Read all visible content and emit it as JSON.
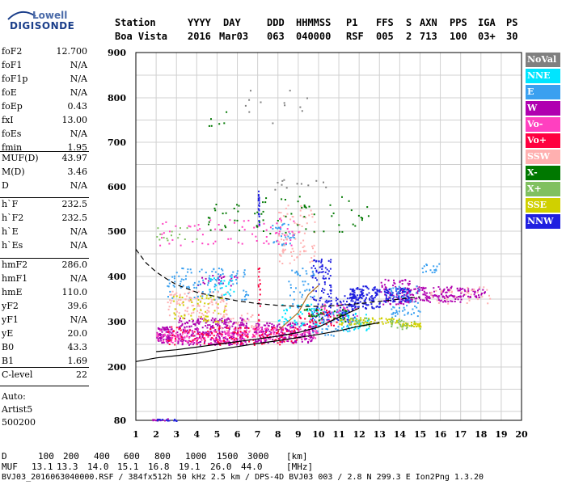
{
  "logo": {
    "line1": "Lowell",
    "line2": "DIGISONDE"
  },
  "header": {
    "labels": [
      "Station",
      "YYYY",
      "DAY",
      "DDD",
      "HHMMSS",
      "P1",
      "FFS",
      "S",
      "AXN",
      "PPS",
      "IGA",
      "PS"
    ],
    "values": [
      "Boa Vista",
      "2016",
      "Mar03",
      "063",
      "040000",
      "RSF",
      "005",
      "2",
      "713",
      "100",
      "03+",
      "30"
    ]
  },
  "params_group1": [
    {
      "key": "foF2",
      "value": "12.700"
    },
    {
      "key": "foF1",
      "value": "N/A"
    },
    {
      "key": "foF1p",
      "value": "N/A"
    },
    {
      "key": "foE",
      "value": "N/A"
    },
    {
      "key": "foEp",
      "value": "0.43"
    },
    {
      "key": "fxI",
      "value": "13.00"
    },
    {
      "key": "foEs",
      "value": "N/A"
    },
    {
      "key": "fmin",
      "value": "1.95"
    }
  ],
  "params_group2": [
    {
      "key": "MUF(D)",
      "value": "43.97"
    },
    {
      "key": "M(D)",
      "value": "3.46"
    },
    {
      "key": "D",
      "value": "N/A"
    }
  ],
  "params_group3": [
    {
      "key": "h`F",
      "value": "232.5"
    },
    {
      "key": "h`F2",
      "value": "232.5"
    },
    {
      "key": "h`E",
      "value": "N/A"
    },
    {
      "key": "h`Es",
      "value": "N/A"
    }
  ],
  "params_group4": [
    {
      "key": "hmF2",
      "value": "286.0"
    },
    {
      "key": "hmF1",
      "value": "N/A"
    },
    {
      "key": "hmE",
      "value": "110.0"
    },
    {
      "key": "yF2",
      "value": "39.6"
    },
    {
      "key": "yF1",
      "value": "N/A"
    },
    {
      "key": "yE",
      "value": "20.0"
    },
    {
      "key": "B0",
      "value": "43.3"
    },
    {
      "key": "B1",
      "value": "1.69"
    }
  ],
  "params_group5": [
    {
      "key": "C-level",
      "value": "22"
    }
  ],
  "auto": {
    "label": "Auto:",
    "program": "Artist5",
    "version": "500200"
  },
  "legend": [
    {
      "label": "NoVal",
      "color": "#808080"
    },
    {
      "label": "NNE",
      "color": "#00e5ff"
    },
    {
      "label": "E",
      "color": "#3aa0f0"
    },
    {
      "label": "W",
      "color": "#b000b0"
    },
    {
      "label": "Vo-",
      "color": "#ff40c0"
    },
    {
      "label": "Vo+",
      "color": "#ff0040"
    },
    {
      "label": "SSW",
      "color": "#ffb0b0"
    },
    {
      "label": "X-",
      "color": "#007800"
    },
    {
      "label": "X+",
      "color": "#80c060"
    },
    {
      "label": "SSE",
      "color": "#d0d000"
    },
    {
      "label": "NNW",
      "color": "#2020e0"
    }
  ],
  "footer": {
    "d_label": "D",
    "d_values": [
      "100",
      "200",
      "400",
      "600",
      "800",
      "1000",
      "1500",
      "3000"
    ],
    "d_unit": "[km]",
    "muf_label": "MUF",
    "muf_values": [
      "13.1",
      "13.3",
      "14.0",
      "15.1",
      "16.8",
      "19.1",
      "26.0",
      "44.0"
    ],
    "muf_unit": "[MHz]",
    "info": "BVJ03_2016063040000.RSF / 384fx512h 50 kHz 2.5 km / DPS-4D BVJ03 003 / 2.8 N 299.3 E Ion2Png 1.3.20"
  },
  "chart_data": {
    "type": "scatter",
    "title": "",
    "xlabel": "",
    "ylabel": "",
    "xlim": [
      1,
      20
    ],
    "ylim": [
      80,
      900
    ],
    "x_ticks": [
      1,
      2,
      3,
      4,
      5,
      6,
      7,
      8,
      9,
      10,
      11,
      12,
      13,
      14,
      15,
      16,
      17,
      18,
      19,
      20
    ],
    "y_ticks": [
      80,
      200,
      300,
      400,
      500,
      600,
      700,
      800,
      900
    ],
    "grid": true,
    "legend_position": "right",
    "series": [
      {
        "color": "#b000b0",
        "clusters": [
          [
            2.0,
            2.8,
            255,
            290,
            90
          ],
          [
            3.0,
            6.5,
            250,
            310,
            320
          ],
          [
            6.8,
            9.8,
            255,
            300,
            220
          ],
          [
            14.0,
            17.0,
            345,
            380,
            150
          ],
          [
            13.0,
            14.5,
            340,
            395,
            70
          ],
          [
            17.0,
            18.2,
            355,
            375,
            35
          ],
          [
            1.8,
            2.6,
            80,
            85,
            12
          ],
          [
            4.0,
            6.0,
            380,
            405,
            25
          ]
        ]
      },
      {
        "color": "#2020e0",
        "clusters": [
          [
            11.5,
            13.0,
            330,
            380,
            130
          ],
          [
            13.2,
            14.5,
            345,
            375,
            80
          ],
          [
            9.6,
            10.6,
            300,
            440,
            110
          ],
          [
            10.8,
            11.8,
            300,
            360,
            70
          ],
          [
            7.0,
            7.05,
            510,
            595,
            25
          ],
          [
            2.0,
            3.0,
            80,
            84,
            15
          ]
        ]
      },
      {
        "color": "#3aa0f0",
        "clusters": [
          [
            2.5,
            6.5,
            350,
            420,
            110
          ],
          [
            7.5,
            8.8,
            470,
            520,
            35
          ],
          [
            13.5,
            15.0,
            310,
            380,
            60
          ],
          [
            9.5,
            11.5,
            270,
            330,
            70
          ],
          [
            8.5,
            9.8,
            330,
            420,
            40
          ],
          [
            15.0,
            16.0,
            410,
            430,
            15
          ]
        ]
      },
      {
        "color": "#00e5ff",
        "clusters": [
          [
            8.0,
            10.0,
            290,
            340,
            50
          ],
          [
            11.0,
            12.5,
            280,
            320,
            40
          ],
          [
            4.5,
            5.8,
            360,
            400,
            25
          ]
        ]
      },
      {
        "color": "#ffb0b0",
        "clusters": [
          [
            2.5,
            5.5,
            310,
            370,
            100
          ],
          [
            8.0,
            9.8,
            430,
            560,
            80
          ],
          [
            15.5,
            18.5,
            340,
            380,
            40
          ],
          [
            5.0,
            7.0,
            280,
            320,
            40
          ]
        ]
      },
      {
        "color": "#ff40c0",
        "clusters": [
          [
            2.0,
            6.0,
            255,
            285,
            110
          ],
          [
            6.0,
            10.0,
            260,
            290,
            100
          ],
          [
            2.0,
            9.0,
            470,
            530,
            70
          ],
          [
            10.0,
            12.0,
            300,
            340,
            30
          ]
        ]
      },
      {
        "color": "#ff0040",
        "clusters": [
          [
            2.5,
            9.0,
            250,
            290,
            140
          ],
          [
            7.0,
            7.1,
            300,
            420,
            18
          ],
          [
            9.0,
            11.0,
            290,
            330,
            35
          ]
        ]
      },
      {
        "color": "#d0d000",
        "clusters": [
          [
            2.8,
            5.5,
            300,
            360,
            60
          ],
          [
            11.0,
            14.0,
            295,
            310,
            60
          ],
          [
            14.0,
            15.0,
            290,
            300,
            30
          ]
        ]
      },
      {
        "color": "#80c060",
        "clusters": [
          [
            11.5,
            12.5,
            290,
            310,
            25
          ],
          [
            13.5,
            15.0,
            285,
            305,
            25
          ],
          [
            2.0,
            4.0,
            480,
            510,
            15
          ]
        ]
      },
      {
        "color": "#007800",
        "clusters": [
          [
            4.5,
            12.5,
            495,
            580,
            70
          ],
          [
            9.0,
            11.5,
            300,
            330,
            30
          ],
          [
            4.5,
            5.5,
            735,
            770,
            6
          ]
        ]
      },
      {
        "color": "#808080",
        "clusters": [
          [
            5.5,
            9.5,
            740,
            820,
            12
          ],
          [
            7.5,
            10.5,
            595,
            620,
            12
          ]
        ]
      }
    ],
    "lines": [
      {
        "name": "",
        "color": "#000000",
        "dash": false,
        "x": [
          1.0,
          2.0,
          3.0,
          4.0,
          5.0,
          6.0,
          7.0,
          8.0,
          9.0,
          10.0,
          11.0,
          12.0,
          13.0
        ],
        "y": [
          212,
          220,
          225,
          230,
          238,
          245,
          252,
          258,
          265,
          272,
          280,
          290,
          298
        ]
      },
      {
        "name": "",
        "color": "#000000",
        "dash": false,
        "x": [
          2.0,
          3.0,
          4.0,
          5.0,
          6.0,
          7.0,
          8.0,
          9.0,
          10.0,
          11.0,
          12.0
        ],
        "y": [
          234,
          238,
          244,
          250,
          256,
          262,
          268,
          276,
          288,
          310,
          330
        ]
      },
      {
        "name": "",
        "color": "#000000",
        "dash": true,
        "x": [
          1.0,
          1.5,
          2.0,
          2.5,
          3.0,
          4.0,
          5.0,
          6.0,
          7.0,
          8.0,
          9.0,
          10.0,
          11.0,
          12.0,
          13.0,
          14.0,
          15.0
        ],
        "y": [
          460,
          430,
          410,
          395,
          382,
          365,
          355,
          346,
          340,
          336,
          334,
          334,
          336,
          340,
          345,
          350,
          355
        ]
      },
      {
        "name": "",
        "color": "#b07020",
        "dash": false,
        "x": [
          8.0,
          8.5,
          9.0,
          9.5,
          10.0
        ],
        "y": [
          280,
          300,
          320,
          360,
          380
        ]
      }
    ]
  }
}
